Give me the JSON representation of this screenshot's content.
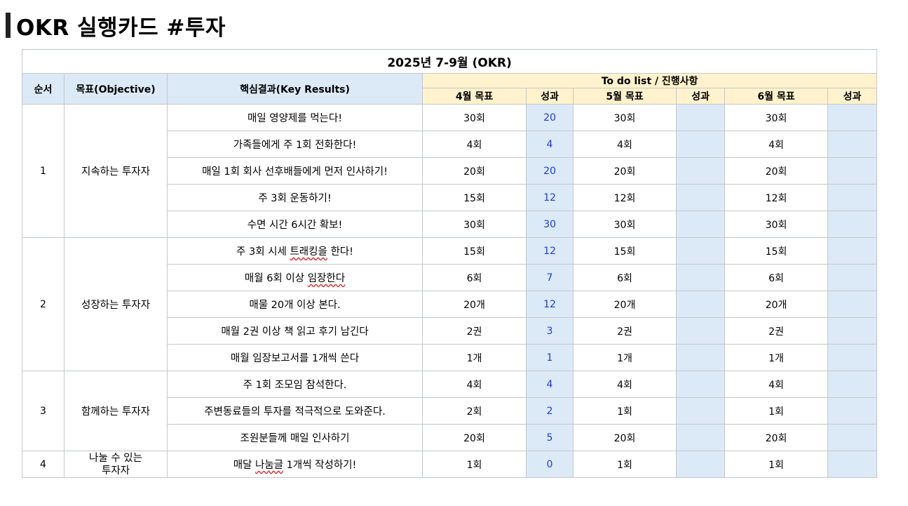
{
  "title": "OKR 실행카드 #투자",
  "table": {
    "period_title": "2025년 7-9월 (OKR)",
    "headers": {
      "seq": "순서",
      "objective": "목표(Objective)",
      "key_results": "핵심결과(Key Results)",
      "todo": "To do list / 진행사항",
      "months": [
        "4월 목표",
        "성과",
        "5월 목표",
        "성과",
        "6월 목표",
        "성과"
      ]
    },
    "groups": [
      {
        "seq": "1",
        "objective": "지속하는 투자자",
        "rows": [
          {
            "kr": "매일 영양제를 먹는다!",
            "apr_goal": "30회",
            "apr_result": "20",
            "may_goal": "30회",
            "may_result": "",
            "jun_goal": "30회",
            "jun_result": ""
          },
          {
            "kr": "가족들에게 주 1회 전화한다!",
            "apr_goal": "4회",
            "apr_result": "4",
            "may_goal": "4회",
            "may_result": "",
            "jun_goal": "4회",
            "jun_result": ""
          },
          {
            "kr": "매일 1회 회사 선후배들에게 먼저 인사하기!",
            "apr_goal": "20회",
            "apr_result": "20",
            "may_goal": "20회",
            "may_result": "",
            "jun_goal": "20회",
            "jun_result": ""
          },
          {
            "kr": "주 3회 운동하기!",
            "apr_goal": "15회",
            "apr_result": "12",
            "may_goal": "12회",
            "may_result": "",
            "jun_goal": "12회",
            "jun_result": ""
          },
          {
            "kr": "수면 시간 6시간 확보!",
            "apr_goal": "30회",
            "apr_result": "30",
            "may_goal": "30회",
            "may_result": "",
            "jun_goal": "30회",
            "jun_result": ""
          }
        ]
      },
      {
        "seq": "2",
        "objective": "성장하는 투자자",
        "rows": [
          {
            "kr_pre": "주 3회 시세 ",
            "kr_sq": "트래킹을",
            "kr_post": " 한다!",
            "apr_goal": "15회",
            "apr_result": "12",
            "may_goal": "15회",
            "may_result": "",
            "jun_goal": "15회",
            "jun_result": ""
          },
          {
            "kr_pre": "매월 6회 이상 ",
            "kr_sq": "임장한다",
            "kr_post": "",
            "apr_goal": "6회",
            "apr_result": "7",
            "may_goal": "6회",
            "may_result": "",
            "jun_goal": "6회",
            "jun_result": ""
          },
          {
            "kr": "매물 20개 이상 본다.",
            "apr_goal": "20개",
            "apr_result": "12",
            "may_goal": "20개",
            "may_result": "",
            "jun_goal": "20개",
            "jun_result": ""
          },
          {
            "kr": "매월 2권 이상 책 읽고 후기 남긴다",
            "apr_goal": "2권",
            "apr_result": "3",
            "may_goal": "2권",
            "may_result": "",
            "jun_goal": "2권",
            "jun_result": ""
          },
          {
            "kr": "매월 임장보고서를 1개씩 쓴다",
            "apr_goal": "1개",
            "apr_result": "1",
            "may_goal": "1개",
            "may_result": "",
            "jun_goal": "1개",
            "jun_result": ""
          }
        ]
      },
      {
        "seq": "3",
        "objective": "함께하는 투자자",
        "rows": [
          {
            "kr": "주 1회 조모임 참석한다.",
            "apr_goal": "4회",
            "apr_result": "4",
            "may_goal": "4회",
            "may_result": "",
            "jun_goal": "4회",
            "jun_result": ""
          },
          {
            "kr": "주변동료들의 투자를 적극적으로 도와준다.",
            "apr_goal": "2회",
            "apr_result": "2",
            "may_goal": "1회",
            "may_result": "",
            "jun_goal": "1회",
            "jun_result": ""
          },
          {
            "kr": "조원분들께 매일 인사하기",
            "apr_goal": "20회",
            "apr_result": "5",
            "may_goal": "20회",
            "may_result": "",
            "jun_goal": "20회",
            "jun_result": ""
          }
        ]
      },
      {
        "seq": "4",
        "objective_line1": "나눌 수 있는",
        "objective_line2": "투자자",
        "rows": [
          {
            "kr_pre": "매달 ",
            "kr_sq": "나눔글",
            "kr_post": " 1개씩 작성하기!",
            "apr_goal": "1회",
            "apr_result": "0",
            "may_goal": "1회",
            "may_result": "",
            "jun_goal": "1회",
            "jun_result": ""
          }
        ]
      }
    ]
  },
  "colors": {
    "header_blue": "#dce9f6",
    "header_yellow": "#fff2cc",
    "result_text": "#1a3fd6",
    "border": "#c4c8cc"
  }
}
